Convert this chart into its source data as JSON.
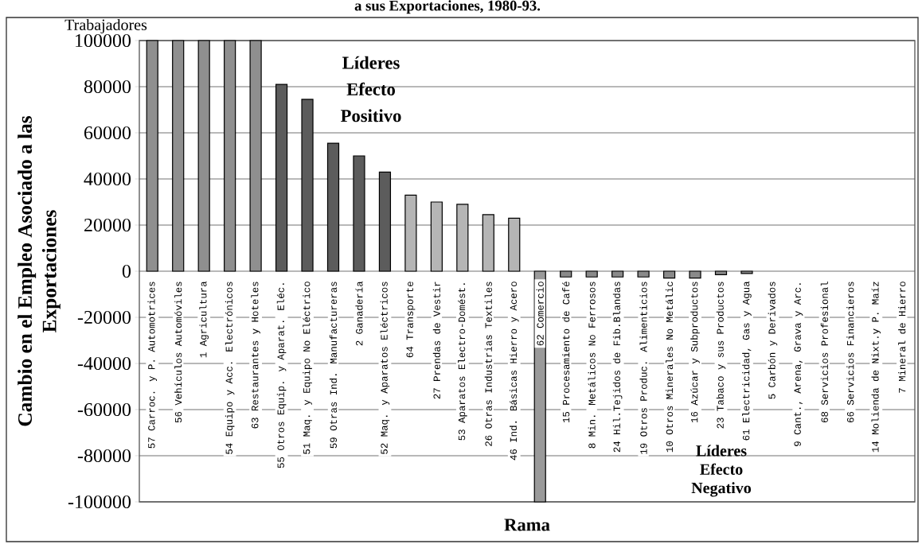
{
  "chart_data": {
    "type": "bar",
    "title": "a sus Exportaciones, 1980-93.",
    "xlabel": "Rama",
    "ylabel": "Cambio en el Empleo Asociado a las Exportaciones",
    "annotations": [
      "Trabajadores",
      "Líderes Efecto Positivo",
      "Líderes Efecto Negativo"
    ],
    "categories": [
      "57 Carroc. y P. Automotrices",
      "56 Vehículos Automóviles",
      "1 Agricultura",
      "54 Equipo y Acc. Electrónicos",
      "63 Restaurantes y Hoteles",
      "55 Otros Equip. y Aparat. Eléc.",
      "51 Maq. y Equipo No Eléctrico",
      "59 Otras Ind. Manufactureras",
      "2 Ganadería",
      "52 Maq. y Aparatos Eléctricos",
      "64 Transporte",
      "27 Prendas de Vestir",
      "53 Aparatos Electro-Domést.",
      "26 Otras Industrias Textiles",
      "46 Ind. Básicas Hierro y Acero",
      "62 Comercio",
      "15 Procesamiento de Café",
      "8 Min. Metálicos No Ferrosos",
      "24 Hil.Tejidos de Fib.Blandas",
      "19 Otros Produc. Alimenticios",
      "10 Otros Minerales No Metálic",
      "16 Azúcar y Subproductos",
      "23 Tabaco y sus Productos",
      "61 Electricidad, Gas y Agua",
      "5 Carbón y Derivados",
      "9 Cant., Arena, Grava y Arc.",
      "68 Servicios Profesional",
      "66 Servicios Financieros",
      "14 Molienda de Nixt.y P. Maíz",
      "7 Mineral de Hierro"
    ],
    "values": [
      100000,
      100000,
      100000,
      100000,
      100000,
      81000,
      74500,
      55500,
      50000,
      43000,
      33000,
      30000,
      29000,
      24500,
      23000,
      -100000,
      -2500,
      -2500,
      -2500,
      -2500,
      -3000,
      -3000,
      -1500,
      -1000,
      null,
      null,
      null,
      null,
      null,
      null
    ],
    "colors": [
      "#8f8f8f",
      "#8f8f8f",
      "#8f8f8f",
      "#8f8f8f",
      "#8f8f8f",
      "#5c5c5c",
      "#5c5c5c",
      "#5c5c5c",
      "#5c5c5c",
      "#5c5c5c",
      "#b5b5b5",
      "#b5b5b5",
      "#b5b5b5",
      "#b5b5b5",
      "#b5b5b5",
      "#9a9a9a",
      "#8a8a8a",
      "#8a8a8a",
      "#8a8a8a",
      "#8a8a8a",
      "#8a8a8a",
      "#8a8a8a",
      "#8a8a8a",
      "#8a8a8a",
      "#8a8a8a",
      "#8a8a8a",
      "#8a8a8a",
      "#8a8a8a",
      "#8a8a8a",
      "#8a8a8a"
    ],
    "ylim": [
      -100000,
      100000
    ],
    "yticks": [
      -100000,
      -80000,
      -60000,
      -40000,
      -20000,
      0,
      20000,
      40000,
      60000,
      80000,
      100000
    ],
    "grid": "y"
  }
}
